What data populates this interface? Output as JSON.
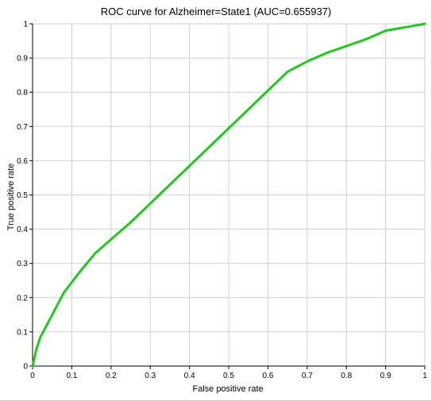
{
  "chart_data": {
    "type": "line",
    "title": "ROC curve for Alzheimer=State1 (AUC=0.655937)",
    "xlabel": "False positive rate",
    "ylabel": "True positive rate",
    "xlim": [
      0,
      1
    ],
    "ylim": [
      0,
      1
    ],
    "grid": true,
    "legend": "none",
    "x_ticks": [
      "0",
      "0.1",
      "0.2",
      "0.3",
      "0.4",
      "0.5",
      "0.6",
      "0.7",
      "0.8",
      "0.9",
      "1"
    ],
    "y_ticks": [
      "0",
      "0.1",
      "0.2",
      "0.3",
      "0.4",
      "0.5",
      "0.6",
      "0.7",
      "0.8",
      "0.9",
      "1"
    ],
    "series": [
      {
        "color": "#22c81e",
        "x": [
          0,
          0.01,
          0.02,
          0.05,
          0.08,
          0.12,
          0.16,
          0.2,
          0.25,
          0.3,
          0.35,
          0.4,
          0.45,
          0.5,
          0.55,
          0.6,
          0.65,
          0.7,
          0.75,
          0.8,
          0.85,
          0.9,
          0.95,
          1.0
        ],
        "y": [
          0,
          0.05,
          0.085,
          0.15,
          0.215,
          0.275,
          0.33,
          0.37,
          0.42,
          0.475,
          0.53,
          0.585,
          0.64,
          0.695,
          0.75,
          0.805,
          0.86,
          0.89,
          0.915,
          0.935,
          0.955,
          0.98,
          0.99,
          1.0
        ]
      }
    ]
  },
  "colors": {
    "grid": "#d0d0d0",
    "axis": "#000000",
    "background": "#ffffff"
  }
}
